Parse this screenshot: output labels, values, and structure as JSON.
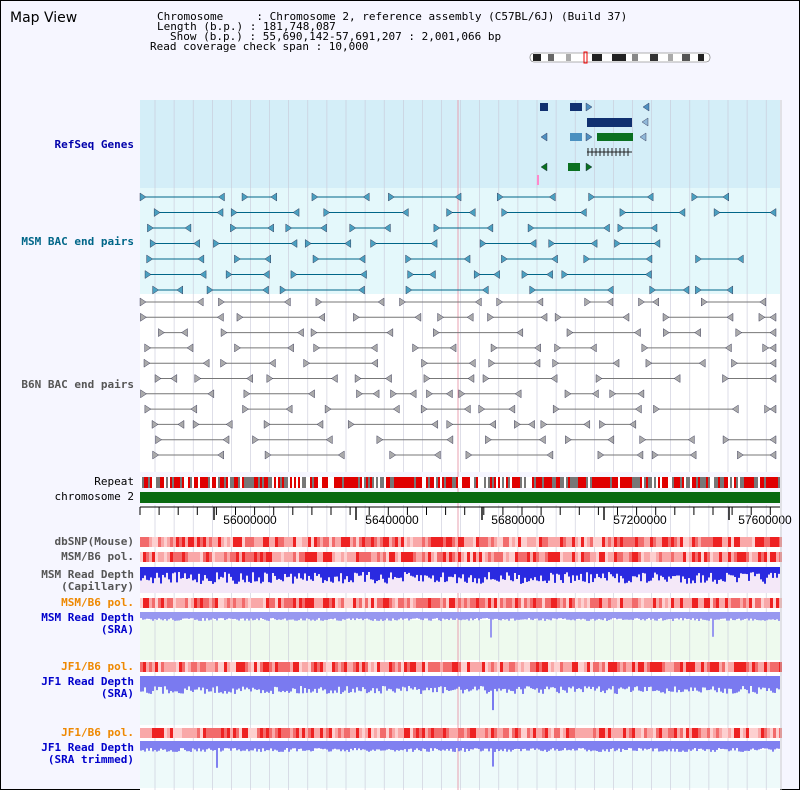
{
  "title": "Map View",
  "info": {
    "chromosome_line": "Chromosome     : Chromosome 2, reference assembly (C57BL/6J) (Build 37)",
    "length_line": "Length (b.p.) : 181,748,087",
    "show_line": "Show (b.p.) : 55,690,142-57,691,207 : 2,001,066 bp",
    "coverage_line": "Read coverage check span : 10,000"
  },
  "tracks": {
    "refseq": "RefSeq Genes",
    "msm_bac": "MSM BAC end pairs",
    "b6n_bac": "B6N BAC end pairs",
    "repeat": "Repeat",
    "chromosome": "chromosome 2",
    "dbsnp": "dbSNP(Mouse)",
    "msm_b6_pol_1": "MSM/B6 pol.",
    "msm_read_depth_cap": "MSM Read Depth\n(Capillary)",
    "msm_b6_pol_2": "MSM/B6 pol.",
    "msm_read_depth_sra": "MSM Read Depth\n(SRA)",
    "jf1_b6_pol_1": "JF1/B6 pol.",
    "jf1_read_depth_sra": "JF1 Read Depth\n(SRA)",
    "jf1_b6_pol_2": "JF1/B6 pol.",
    "jf1_read_depth_trim": "JF1 Read Depth\n(SRA trimmed)"
  },
  "axis": {
    "ticks": [
      "56000000",
      "56400000",
      "56800000",
      "57200000",
      "57600000"
    ]
  },
  "colors": {
    "refseq_label": "#0000aa",
    "msm_bac_label": "#006688",
    "b6n_bac_label": "#555555",
    "pol_orange_label": "#ee8800",
    "depth_blue_label": "#0000cc"
  }
}
